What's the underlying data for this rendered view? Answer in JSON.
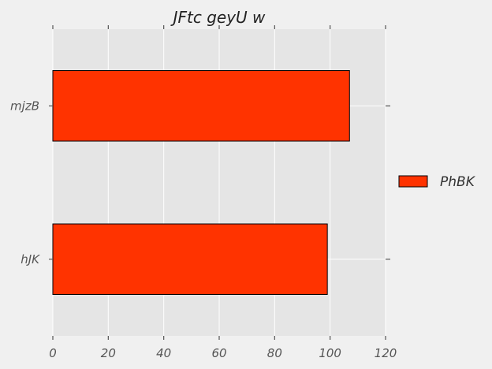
{
  "chart_data": {
    "type": "bar",
    "orientation": "horizontal",
    "title": "JFtc geyU w",
    "xlabel": "",
    "ylabel": "",
    "categories": [
      "mjzB",
      "hJK"
    ],
    "series": [
      {
        "name": "PhBK",
        "values": [
          107,
          99
        ],
        "color": "#ff3300"
      }
    ],
    "xlim": [
      0,
      120
    ],
    "xticks": [
      0,
      20,
      40,
      60,
      80,
      100,
      120
    ],
    "grid": true,
    "legend_position": "right",
    "colors": {
      "background": "#f0f0f0",
      "plot_area": "#e5e5e5",
      "grid": "#ffffff",
      "bar_edge": "#000000"
    }
  }
}
